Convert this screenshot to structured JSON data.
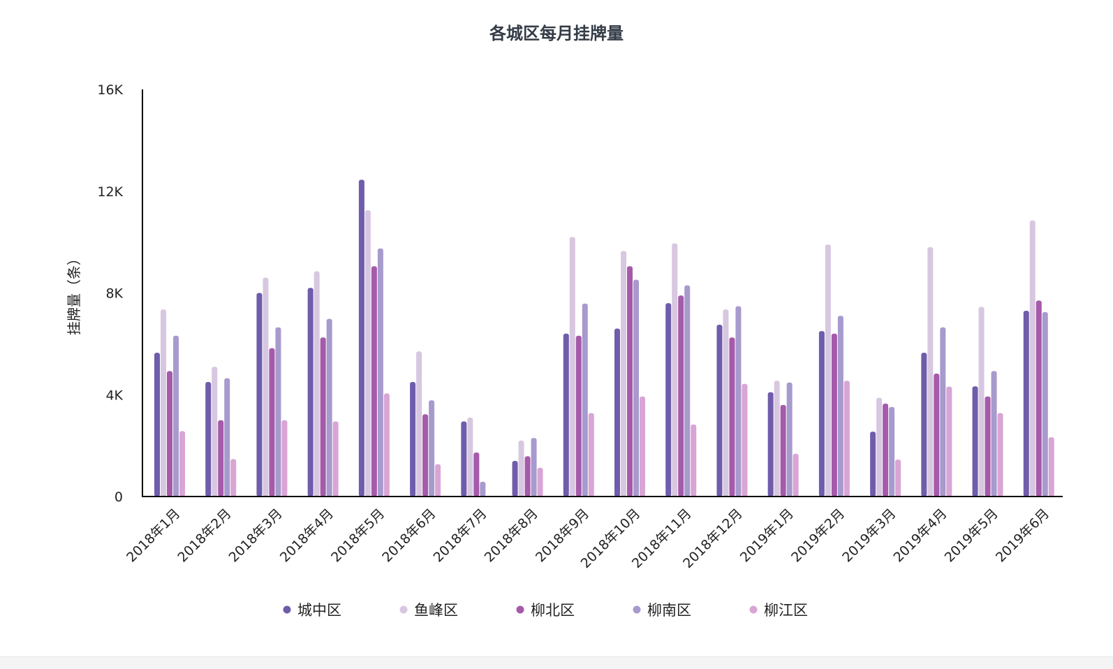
{
  "chart_data": {
    "type": "bar",
    "title": "各城区每月挂牌量",
    "ylabel": "挂牌量（条）",
    "xlabel": "",
    "ylim": [
      0,
      16000
    ],
    "yticks": [
      0,
      4000,
      8000,
      12000,
      16000
    ],
    "ytick_labels": [
      "0",
      "4K",
      "8K",
      "12K",
      "16K"
    ],
    "grid": false,
    "legend_position": "bottom",
    "categories": [
      "2018年1月",
      "2018年2月",
      "2018年3月",
      "2018年4月",
      "2018年5月",
      "2018年6月",
      "2018年7月",
      "2018年8月",
      "2018年9月",
      "2018年10月",
      "2018年11月",
      "2018年12月",
      "2019年1月",
      "2019年2月",
      "2019年3月",
      "2019年4月",
      "2019年5月",
      "2019年6月"
    ],
    "series": [
      {
        "name": "城中区",
        "color": "#6f5cab",
        "values": [
          5650,
          4500,
          8000,
          8200,
          12450,
          4500,
          2950,
          1400,
          6400,
          6600,
          7600,
          6750,
          4100,
          6500,
          2550,
          5650,
          4330,
          7300
        ]
      },
      {
        "name": "鱼峰区",
        "color": "#d7c7e0",
        "values": [
          7350,
          5100,
          8600,
          8850,
          11250,
          5700,
          3100,
          2200,
          10200,
          9650,
          9950,
          7350,
          4550,
          9900,
          3880,
          9800,
          7450,
          10850
        ]
      },
      {
        "name": "柳北区",
        "color": "#a55aaa",
        "values": [
          4930,
          3000,
          5830,
          6250,
          9050,
          3230,
          1730,
          1580,
          6320,
          9050,
          7900,
          6250,
          3600,
          6400,
          3650,
          4830,
          3930,
          7700
        ]
      },
      {
        "name": "柳南区",
        "color": "#a79acd",
        "values": [
          6320,
          4650,
          6650,
          6980,
          9750,
          3780,
          580,
          2300,
          7580,
          8520,
          8300,
          7480,
          4480,
          7100,
          3520,
          6650,
          4930,
          7250
        ]
      },
      {
        "name": "柳江区",
        "color": "#d9a5d5",
        "values": [
          2570,
          1470,
          3000,
          2950,
          4050,
          1270,
          0,
          1130,
          3280,
          3930,
          2830,
          4430,
          1680,
          4550,
          1450,
          4320,
          3280,
          2330
        ]
      }
    ]
  }
}
